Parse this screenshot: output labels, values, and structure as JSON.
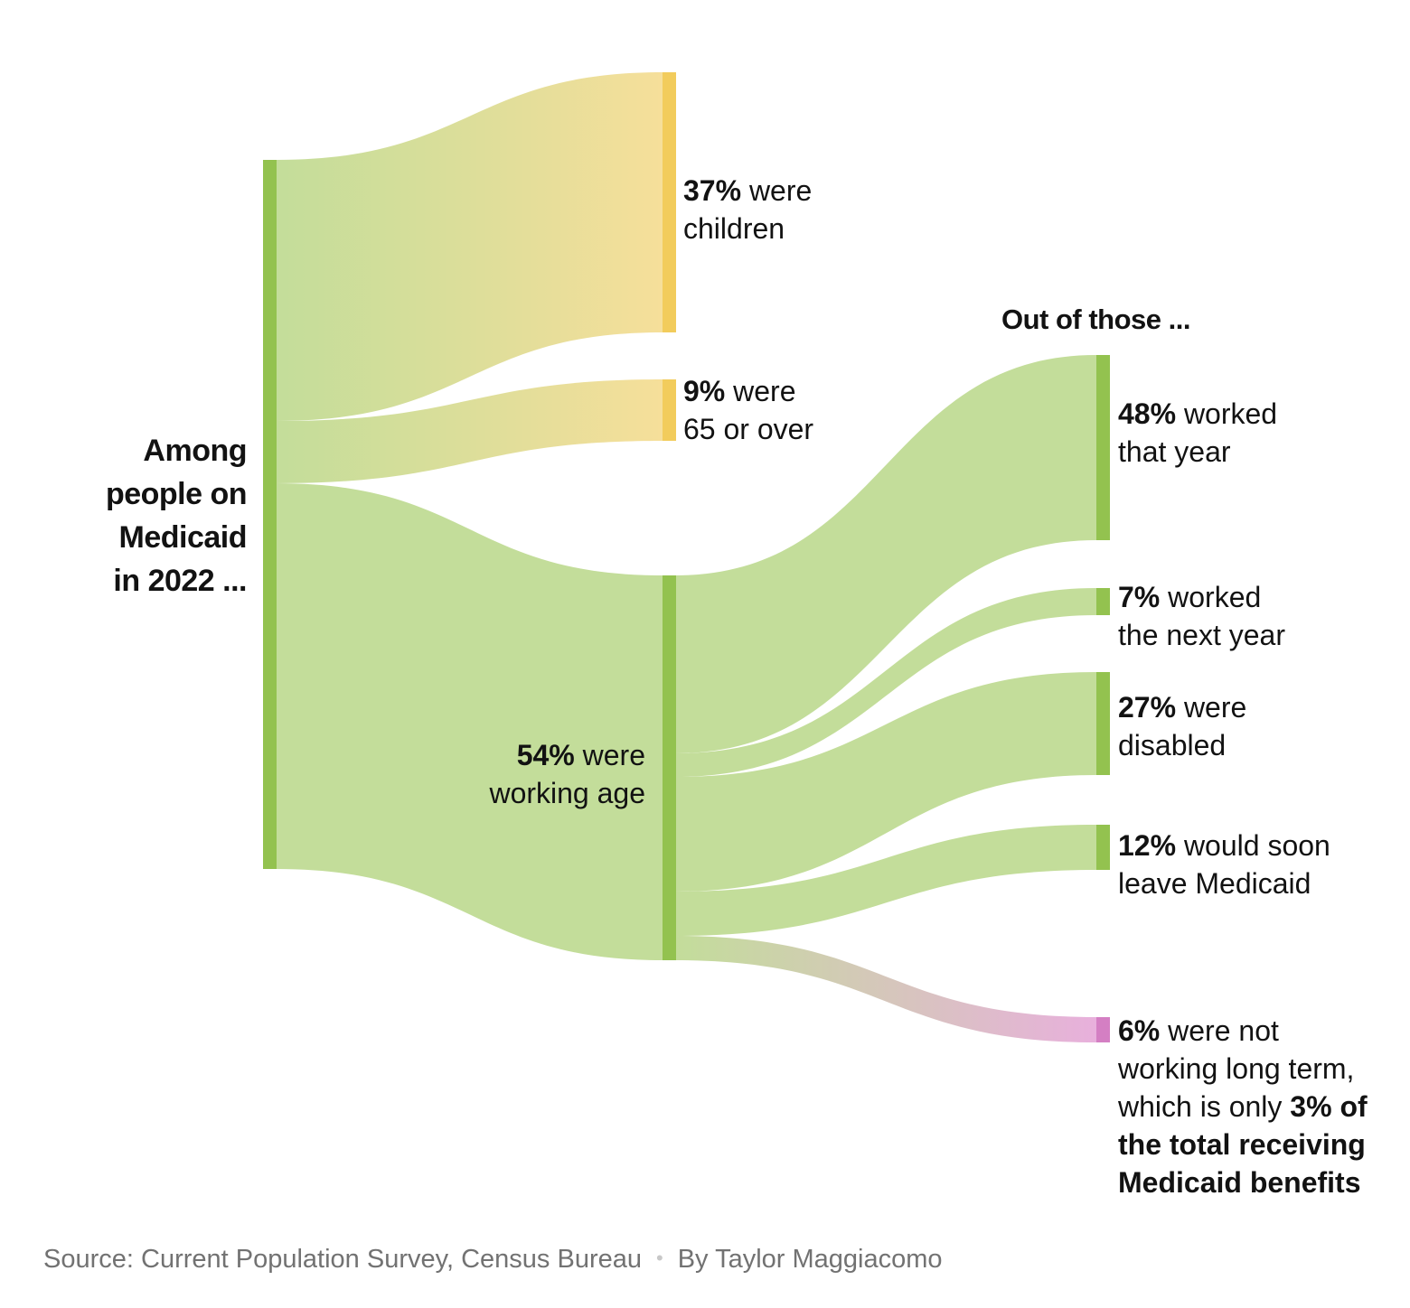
{
  "chart_data": {
    "type": "sankey",
    "title": "Among people on Medicaid in 2022 ...",
    "stage2_heading": "Out of those ...",
    "nodes": [
      {
        "id": "root",
        "title_lines": [
          "Among",
          "people on",
          "Medicaid",
          "in 2022 ..."
        ],
        "value": 100,
        "color": "#93c24f"
      },
      {
        "id": "children",
        "pct": "37%",
        "rest": [
          " were",
          "children"
        ],
        "value": 37,
        "color": "#f2cc5c"
      },
      {
        "id": "seniors",
        "pct": "9%",
        "rest": [
          " were",
          "65 or over"
        ],
        "value": 9,
        "color": "#f2cc5c"
      },
      {
        "id": "working_age",
        "pct": "54%",
        "rest": [
          " were",
          "working age"
        ],
        "value": 54,
        "color": "#93c24f"
      },
      {
        "id": "worked",
        "pct": "48%",
        "rest": [
          " worked",
          "that year"
        ],
        "value": 48,
        "color": "#93c24f"
      },
      {
        "id": "worked_next",
        "pct": "7%",
        "rest": [
          " worked",
          "the next year"
        ],
        "value": 7,
        "color": "#93c24f"
      },
      {
        "id": "disabled",
        "pct": "27%",
        "rest": [
          " were",
          "disabled"
        ],
        "value": 27,
        "color": "#93c24f"
      },
      {
        "id": "leave",
        "pct": "12%",
        "rest": [
          " would soon",
          "leave Medicaid"
        ],
        "value": 12,
        "color": "#93c24f"
      },
      {
        "id": "not_working",
        "pct": "6%",
        "rest": [
          " were not",
          "working long term,",
          "which is only "
        ],
        "bold_tail": [
          "3% of",
          "the total receiving",
          "Medicaid benefits"
        ],
        "value": 6,
        "color": "#d47fc3"
      }
    ],
    "links": [
      {
        "source": "root",
        "target": "children",
        "value": 37
      },
      {
        "source": "root",
        "target": "seniors",
        "value": 9
      },
      {
        "source": "root",
        "target": "working_age",
        "value": 54
      },
      {
        "source": "working_age",
        "target": "worked",
        "value": 48
      },
      {
        "source": "working_age",
        "target": "worked_next",
        "value": 7
      },
      {
        "source": "working_age",
        "target": "disabled",
        "value": 27
      },
      {
        "source": "working_age",
        "target": "leave",
        "value": 12
      },
      {
        "source": "working_age",
        "target": "not_working",
        "value": 6
      }
    ]
  },
  "colors": {
    "green_link": "#c3dd9a",
    "yellow_link": "#f5dd9a",
    "pink_link": "#e6b0da",
    "text": "#121212",
    "muted": "#727272"
  },
  "footer": {
    "source": "Source: Current Population Survey, Census Bureau",
    "separator": "•",
    "byline": "By Taylor Maggiacomo"
  }
}
